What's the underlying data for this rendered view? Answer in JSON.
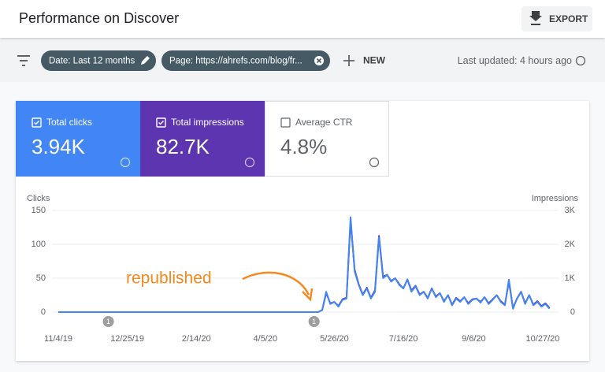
{
  "header": {
    "title": "Performance on Discover",
    "export": "EXPORT"
  },
  "filters": {
    "date": "Date: Last 12 months",
    "page": "Page: https://ahrefs.com/blog/fr...",
    "new": "NEW",
    "updated": "Last updated: 4 hours ago"
  },
  "cards": [
    {
      "label": "Total clicks",
      "value": "3.94K"
    },
    {
      "label": "Total impressions",
      "value": "82.7K"
    },
    {
      "label": "Average CTR",
      "value": "4.8%"
    }
  ],
  "chart_data": {
    "type": "line",
    "x": [
      "11/4/19",
      "5/11/20",
      "5/14/20",
      "5/17/20",
      "5/20/20",
      "5/23/20",
      "5/26/20",
      "5/29/20",
      "6/1/20",
      "6/4/20",
      "6/7/20",
      "6/10/20",
      "6/13/20",
      "6/16/20",
      "6/19/20",
      "6/22/20",
      "6/25/20",
      "6/28/20",
      "7/1/20",
      "7/4/20",
      "7/7/20",
      "7/10/20",
      "7/13/20",
      "7/16/20",
      "7/19/20",
      "7/22/20",
      "7/25/20",
      "7/28/20",
      "7/31/20",
      "8/3/20",
      "8/6/20",
      "8/9/20",
      "8/12/20",
      "8/15/20",
      "8/18/20",
      "8/21/20",
      "8/24/20",
      "8/27/20",
      "8/30/20",
      "9/2/20",
      "9/5/20",
      "9/8/20",
      "9/11/20",
      "9/14/20",
      "9/17/20",
      "9/20/20",
      "9/23/20",
      "9/26/20",
      "9/29/20",
      "10/2/20",
      "10/5/20",
      "10/8/20",
      "10/11/20",
      "10/14/20",
      "10/17/20",
      "10/20/20",
      "10/23/20",
      "10/26/20",
      "10/29/20",
      "11/1/20"
    ],
    "series": [
      {
        "name": "Clicks",
        "color": "#4285f4",
        "values": [
          0,
          0,
          0,
          3,
          30,
          12,
          15,
          8,
          18,
          20,
          140,
          60,
          40,
          25,
          35,
          20,
          30,
          110,
          50,
          55,
          45,
          50,
          40,
          35,
          48,
          30,
          38,
          25,
          30,
          20,
          35,
          22,
          28,
          15,
          25,
          10,
          20,
          15,
          22,
          12,
          18,
          20,
          14,
          22,
          12,
          18,
          25,
          15,
          10,
          48,
          5,
          20,
          30,
          12,
          25,
          10,
          15,
          8,
          12,
          5
        ]
      },
      {
        "name": "Impressions",
        "color": "#5e35b1",
        "axis": "y2",
        "values": [
          0,
          0,
          0,
          60,
          560,
          260,
          300,
          180,
          380,
          420,
          2700,
          1250,
          820,
          520,
          720,
          420,
          640,
          2250,
          1050,
          1100,
          920,
          1000,
          820,
          700,
          960,
          640,
          780,
          520,
          600,
          420,
          700,
          460,
          560,
          320,
          500,
          220,
          420,
          320,
          440,
          260,
          380,
          400,
          300,
          440,
          260,
          380,
          500,
          320,
          220,
          900,
          120,
          400,
          600,
          260,
          500,
          220,
          320,
          180,
          260,
          120
        ]
      }
    ],
    "xlim": [
      "11/4/19",
      "11/3/20"
    ],
    "xticks": [
      "11/4/19",
      "12/25/19",
      "2/14/20",
      "4/5/20",
      "5/26/20",
      "7/16/20",
      "9/6/20",
      "10/27/20"
    ],
    "ylim": [
      0,
      150
    ],
    "yticks": [
      0,
      50,
      100,
      150
    ],
    "y2lim": [
      0,
      3000
    ],
    "y2ticks": [
      {
        "value": 0,
        "label": "0"
      },
      {
        "value": 1000,
        "label": "1K"
      },
      {
        "value": 2000,
        "label": "2K"
      },
      {
        "value": 3000,
        "label": "3K"
      }
    ],
    "grid": true,
    "annotations": [
      {
        "x": "12/11/19",
        "label": "1"
      },
      {
        "x": "5/11/20",
        "label": "1"
      }
    ],
    "note": "republished"
  }
}
